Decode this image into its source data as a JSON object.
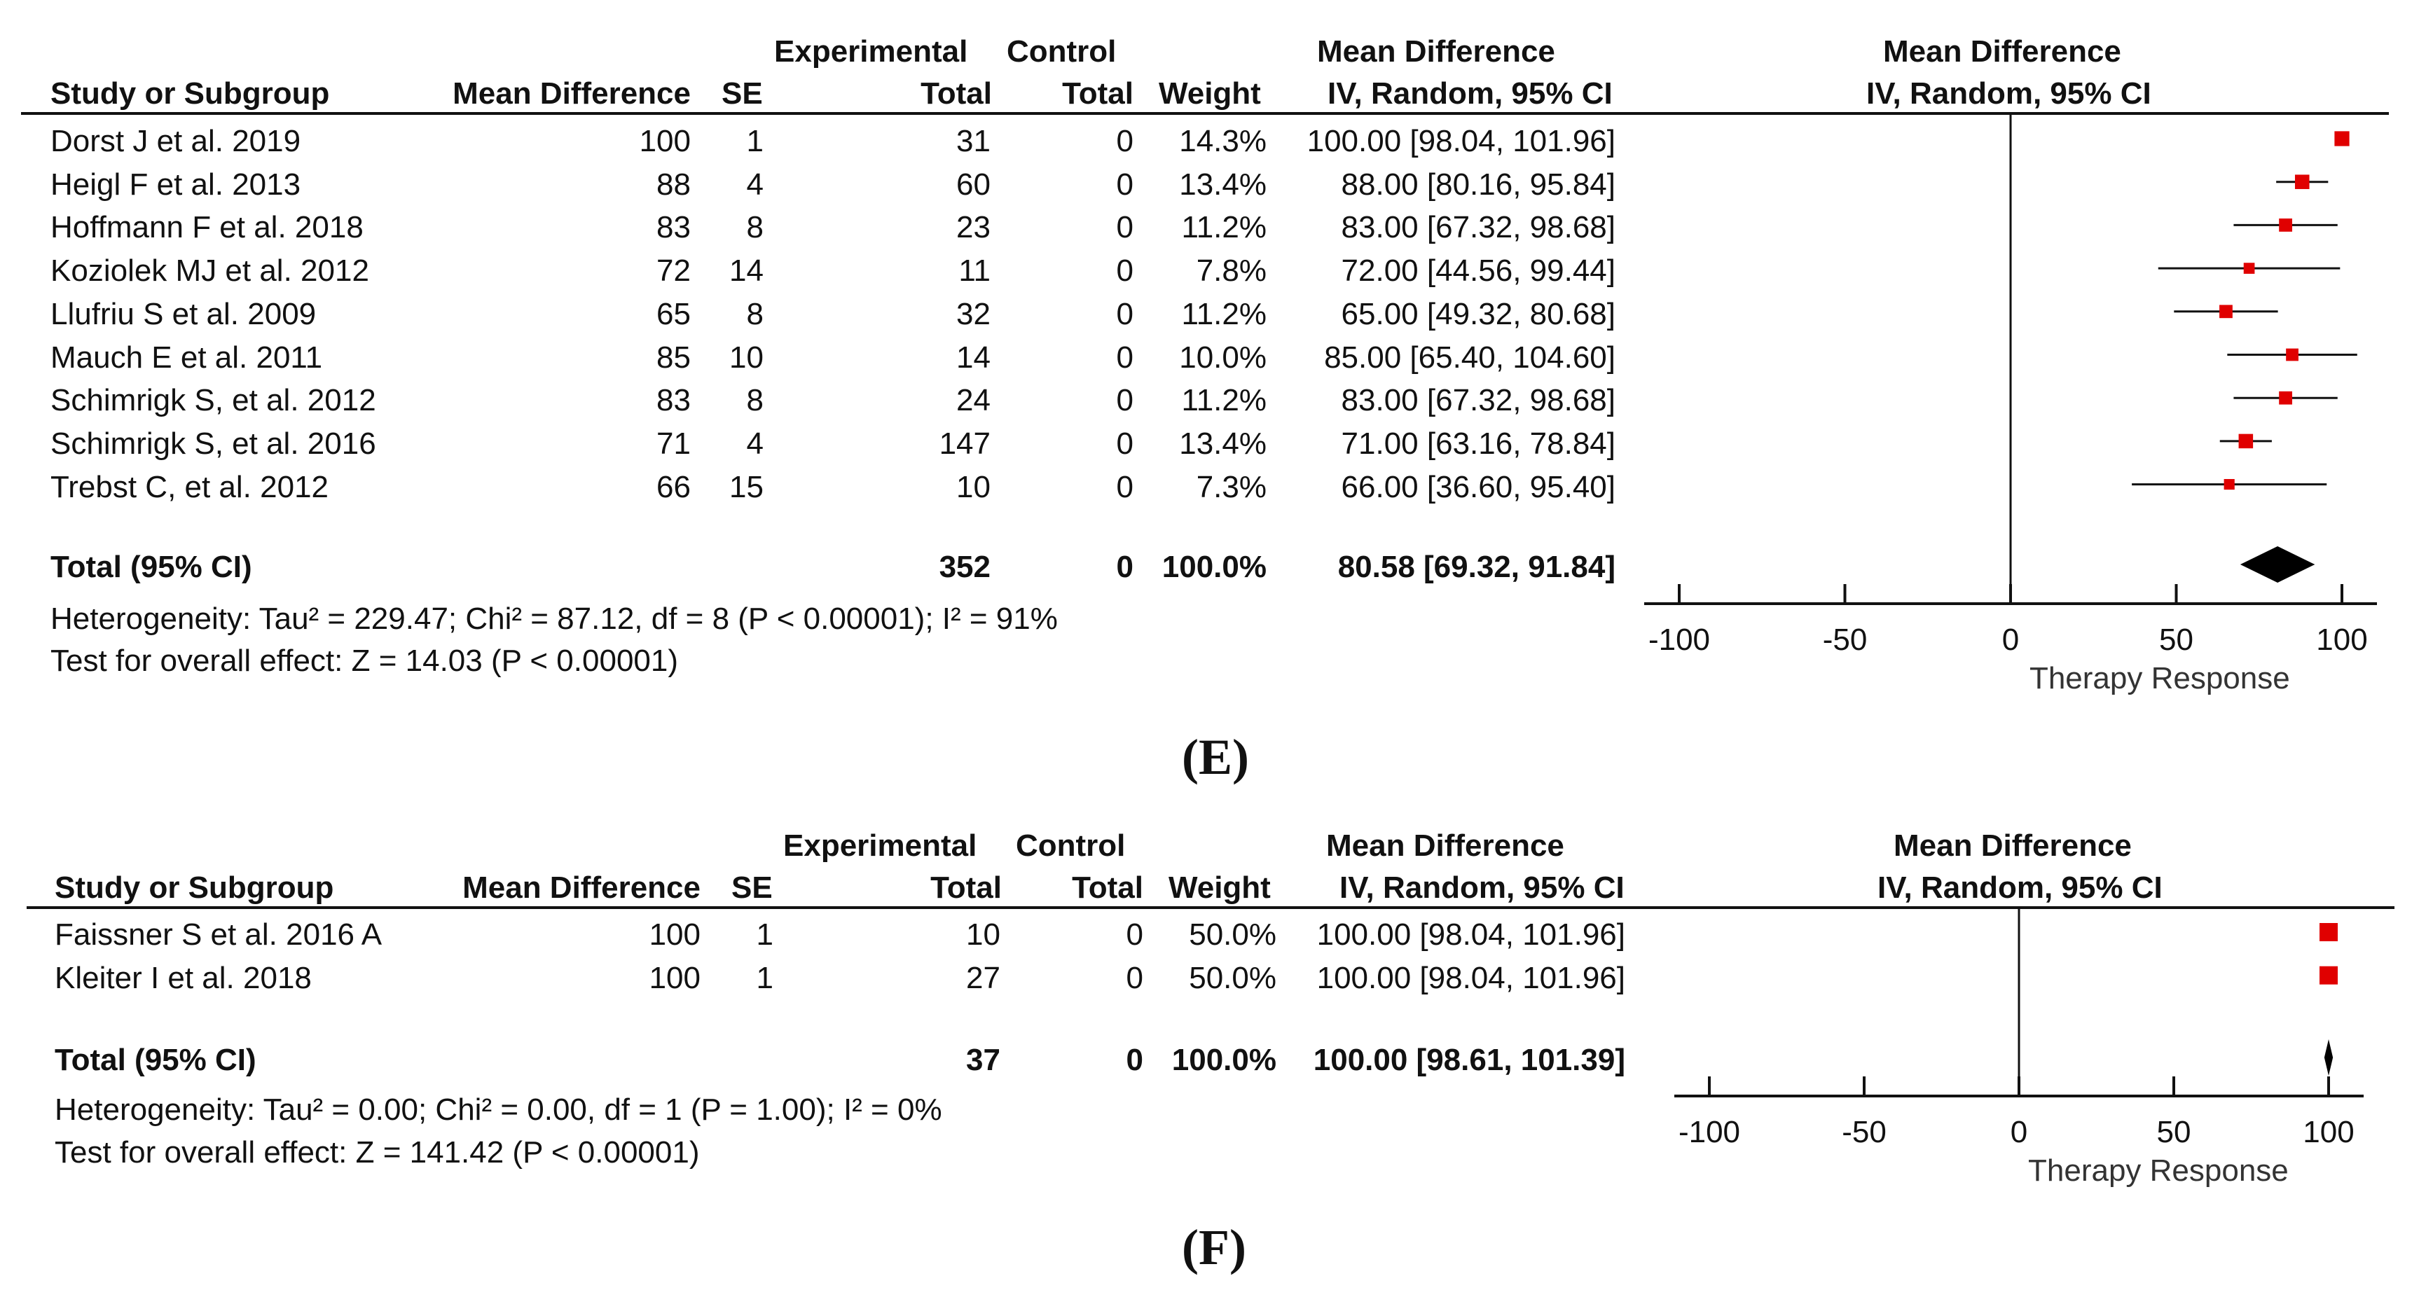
{
  "chart_data": [
    {
      "type": "forest",
      "panel_label": "(E)",
      "headers": {
        "study": "Study or Subgroup",
        "md": "Mean Difference",
        "se": "SE",
        "exp_top": "Experimental",
        "exp_bottom": "Total",
        "ctl_top": "Control",
        "ctl_bottom": "Total",
        "weight": "Weight",
        "ci_top": "Mean Difference",
        "ci_bottom": "IV, Random, 95% CI",
        "plot_top": "Mean Difference",
        "plot_bottom": "IV, Random, 95% CI"
      },
      "studies": [
        {
          "name": "Dorst J et al. 2019",
          "md": "100",
          "se": "1",
          "exp": "31",
          "ctl": "0",
          "weight": "14.3%",
          "ci": "100.00 [98.04, 101.96]",
          "est": 100,
          "lo": 98.04,
          "hi": 101.96,
          "w": 14.3
        },
        {
          "name": "Heigl F et al. 2013",
          "md": "88",
          "se": "4",
          "exp": "60",
          "ctl": "0",
          "weight": "13.4%",
          "ci": "88.00 [80.16, 95.84]",
          "est": 88,
          "lo": 80.16,
          "hi": 95.84,
          "w": 13.4
        },
        {
          "name": "Hoffmann F et al. 2018",
          "md": "83",
          "se": "8",
          "exp": "23",
          "ctl": "0",
          "weight": "11.2%",
          "ci": "83.00 [67.32, 98.68]",
          "est": 83,
          "lo": 67.32,
          "hi": 98.68,
          "w": 11.2
        },
        {
          "name": "Koziolek MJ et al. 2012",
          "md": "72",
          "se": "14",
          "exp": "11",
          "ctl": "0",
          "weight": "7.8%",
          "ci": "72.00 [44.56, 99.44]",
          "est": 72,
          "lo": 44.56,
          "hi": 99.44,
          "w": 7.8
        },
        {
          "name": "Llufriu S et al. 2009",
          "md": "65",
          "se": "8",
          "exp": "32",
          "ctl": "0",
          "weight": "11.2%",
          "ci": "65.00 [49.32, 80.68]",
          "est": 65,
          "lo": 49.32,
          "hi": 80.68,
          "w": 11.2
        },
        {
          "name": "Mauch E et al. 2011",
          "md": "85",
          "se": "10",
          "exp": "14",
          "ctl": "0",
          "weight": "10.0%",
          "ci": "85.00 [65.40, 104.60]",
          "est": 85,
          "lo": 65.4,
          "hi": 104.6,
          "w": 10.0
        },
        {
          "name": "Schimrigk S, et al. 2012",
          "md": "83",
          "se": "8",
          "exp": "24",
          "ctl": "0",
          "weight": "11.2%",
          "ci": "83.00 [67.32, 98.68]",
          "est": 83,
          "lo": 67.32,
          "hi": 98.68,
          "w": 11.2
        },
        {
          "name": "Schimrigk S, et al. 2016",
          "md": "71",
          "se": "4",
          "exp": "147",
          "ctl": "0",
          "weight": "13.4%",
          "ci": "71.00 [63.16, 78.84]",
          "est": 71,
          "lo": 63.16,
          "hi": 78.84,
          "w": 13.4
        },
        {
          "name": "Trebst C, et al. 2012",
          "md": "66",
          "se": "15",
          "exp": "10",
          "ctl": "0",
          "weight": "7.3%",
          "ci": "66.00 [36.60, 95.40]",
          "est": 66,
          "lo": 36.6,
          "hi": 95.4,
          "w": 7.3
        }
      ],
      "total": {
        "label": "Total (95% CI)",
        "exp": "352",
        "ctl": "0",
        "weight": "100.0%",
        "ci": "80.58 [69.32, 91.84]",
        "est": 80.58,
        "lo": 69.32,
        "hi": 91.84
      },
      "heterogeneity": "Heterogeneity: Tau² = 229.47; Chi² = 87.12, df = 8 (P < 0.00001); I² = 91%",
      "overall_effect": "Test for overall effect: Z = 14.03 (P < 0.00001)",
      "x_range": [
        -100,
        100
      ],
      "x_ticks": [
        -100,
        -50,
        0,
        50,
        100
      ],
      "x_tick_labels": [
        "-100",
        "-50",
        "0",
        "50",
        "100"
      ],
      "xlabel": "Therapy Response",
      "marker_color": "#e00000"
    },
    {
      "type": "forest",
      "panel_label": "(F)",
      "headers": {
        "study": "Study or Subgroup",
        "md": "Mean Difference",
        "se": "SE",
        "exp_top": "Experimental",
        "exp_bottom": "Total",
        "ctl_top": "Control",
        "ctl_bottom": "Total",
        "weight": "Weight",
        "ci_top": "Mean Difference",
        "ci_bottom": "IV, Random, 95% CI",
        "plot_top": "Mean Difference",
        "plot_bottom": "IV, Random, 95% CI"
      },
      "studies": [
        {
          "name": "Faissner S et al. 2016 A",
          "md": "100",
          "se": "1",
          "exp": "10",
          "ctl": "0",
          "weight": "50.0%",
          "ci": "100.00 [98.04, 101.96]",
          "est": 100,
          "lo": 98.04,
          "hi": 101.96,
          "w": 50.0
        },
        {
          "name": "Kleiter I et al. 2018",
          "md": "100",
          "se": "1",
          "exp": "27",
          "ctl": "0",
          "weight": "50.0%",
          "ci": "100.00 [98.04, 101.96]",
          "est": 100,
          "lo": 98.04,
          "hi": 101.96,
          "w": 50.0
        }
      ],
      "total": {
        "label": "Total (95% CI)",
        "exp": "37",
        "ctl": "0",
        "weight": "100.0%",
        "ci": "100.00 [98.61, 101.39]",
        "est": 100,
        "lo": 98.61,
        "hi": 101.39
      },
      "heterogeneity": "Heterogeneity: Tau² = 0.00; Chi² = 0.00, df = 1 (P = 1.00); I² = 0%",
      "overall_effect": "Test for overall effect: Z = 141.42 (P < 0.00001)",
      "x_range": [
        -100,
        100
      ],
      "x_ticks": [
        -100,
        -50,
        0,
        50,
        100
      ],
      "x_tick_labels": [
        "-100",
        "-50",
        "0",
        "50",
        "100"
      ],
      "xlabel": "Therapy Response",
      "marker_color": "#e00000"
    }
  ]
}
